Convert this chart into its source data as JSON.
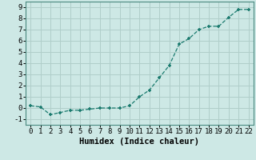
{
  "x": [
    0,
    1,
    2,
    3,
    4,
    5,
    6,
    7,
    8,
    9,
    10,
    11,
    12,
    13,
    14,
    15,
    16,
    17,
    18,
    19,
    20,
    21,
    22
  ],
  "y": [
    0.2,
    0.1,
    -0.6,
    -0.4,
    -0.2,
    -0.2,
    -0.1,
    0.0,
    0.0,
    0.0,
    0.2,
    1.0,
    1.6,
    2.7,
    3.8,
    5.7,
    6.2,
    7.0,
    7.3,
    7.3,
    8.1,
    8.8,
    8.8
  ],
  "line_color": "#1a7a6e",
  "marker_color": "#1a7a6e",
  "bg_color": "#cde8e5",
  "grid_color": "#b0ceca",
  "xlabel": "Humidex (Indice chaleur)",
  "xlim": [
    -0.5,
    22.5
  ],
  "ylim": [
    -1.5,
    9.5
  ],
  "yticks": [
    -1,
    0,
    1,
    2,
    3,
    4,
    5,
    6,
    7,
    8,
    9
  ],
  "xticks": [
    0,
    1,
    2,
    3,
    4,
    5,
    6,
    7,
    8,
    9,
    10,
    11,
    12,
    13,
    14,
    15,
    16,
    17,
    18,
    19,
    20,
    21,
    22
  ],
  "tick_fontsize": 6.5,
  "xlabel_fontsize": 7.5
}
